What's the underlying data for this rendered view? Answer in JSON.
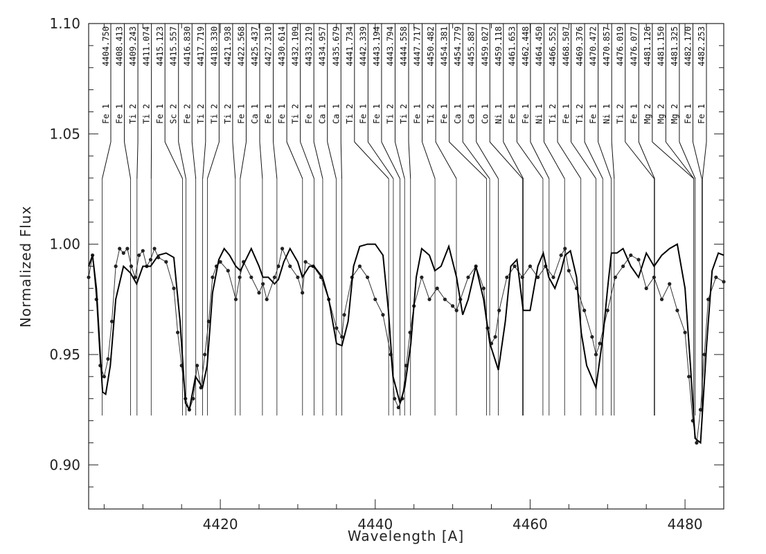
{
  "chart_data": {
    "type": "line",
    "xlabel": "Wavelength [A]",
    "ylabel": "Normalized Flux",
    "xlim": [
      4403,
      4485
    ],
    "ylim": [
      0.88,
      1.1
    ],
    "x_ticks": [
      4420,
      4440,
      4460,
      4480
    ],
    "y_ticks": [
      0.9,
      0.95,
      1.0,
      1.05,
      1.1
    ],
    "x_tick_labels": [
      "4420",
      "4440",
      "4460",
      "4480"
    ],
    "y_tick_labels": [
      "0.90",
      "0.95",
      "1.00",
      "1.05",
      "1.10"
    ],
    "grid": false,
    "line_identifications": [
      {
        "wavelength": 4404.75,
        "label": "4404.750",
        "species": "Fe 1"
      },
      {
        "wavelength": 4408.413,
        "label": "4408.413",
        "species": "Fe 1"
      },
      {
        "wavelength": 4409.243,
        "label": "4409.243",
        "species": "Ti 2"
      },
      {
        "wavelength": 4411.074,
        "label": "4411.074",
        "species": "Ti 2"
      },
      {
        "wavelength": 4415.123,
        "label": "4415.123",
        "species": "Fe 1"
      },
      {
        "wavelength": 4415.557,
        "label": "4415.557",
        "species": "Sc 2"
      },
      {
        "wavelength": 4416.83,
        "label": "4416.830",
        "species": "Fe 2"
      },
      {
        "wavelength": 4417.719,
        "label": "4417.719",
        "species": "Ti 2"
      },
      {
        "wavelength": 4418.33,
        "label": "4418.330",
        "species": "Ti 2"
      },
      {
        "wavelength": 4421.938,
        "label": "4421.938",
        "species": "Ti 2"
      },
      {
        "wavelength": 4422.568,
        "label": "4422.568",
        "species": "Fe 1"
      },
      {
        "wavelength": 4425.437,
        "label": "4425.437",
        "species": "Ca 1"
      },
      {
        "wavelength": 4427.31,
        "label": "4427.310",
        "species": "Fe 1"
      },
      {
        "wavelength": 4430.614,
        "label": "4430.614",
        "species": "Fe 1"
      },
      {
        "wavelength": 4432.109,
        "label": "4432.109",
        "species": "Ti 2"
      },
      {
        "wavelength": 4433.219,
        "label": "4433.219",
        "species": "Fe 1"
      },
      {
        "wavelength": 4434.957,
        "label": "4434.957",
        "species": "Ca 1"
      },
      {
        "wavelength": 4435.679,
        "label": "4435.679",
        "species": "Ca 1"
      },
      {
        "wavelength": 4441.734,
        "label": "4441.734",
        "species": "Ti 2"
      },
      {
        "wavelength": 4442.339,
        "label": "4442.339",
        "species": "Fe 1"
      },
      {
        "wavelength": 4443.194,
        "label": "4443.194",
        "species": "Fe 1"
      },
      {
        "wavelength": 4443.794,
        "label": "4443.794",
        "species": "Ti 2"
      },
      {
        "wavelength": 4444.558,
        "label": "4444.558",
        "species": "Ti 2"
      },
      {
        "wavelength": 4447.717,
        "label": "4447.717",
        "species": "Fe 1"
      },
      {
        "wavelength": 4450.482,
        "label": "4450.482",
        "species": "Ti 2"
      },
      {
        "wavelength": 4454.381,
        "label": "4454.381",
        "species": "Fe 1"
      },
      {
        "wavelength": 4454.779,
        "label": "4454.779",
        "species": "Ca 1"
      },
      {
        "wavelength": 4455.887,
        "label": "4455.887",
        "species": "Ca 1"
      },
      {
        "wavelength": 4459.027,
        "label": "4459.027",
        "species": "Co 1"
      },
      {
        "wavelength": 4459.118,
        "label": "4459.118",
        "species": "Ni 1"
      },
      {
        "wavelength": 4461.653,
        "label": "4461.653",
        "species": "Fe 1"
      },
      {
        "wavelength": 4462.448,
        "label": "4462.448",
        "species": "Fe 1"
      },
      {
        "wavelength": 4464.45,
        "label": "4464.450",
        "species": "Ni 1"
      },
      {
        "wavelength": 4466.552,
        "label": "4466.552",
        "species": "Ti 2"
      },
      {
        "wavelength": 4468.507,
        "label": "4468.507",
        "species": "Fe 1"
      },
      {
        "wavelength": 4469.376,
        "label": "4469.376",
        "species": "Ti 2"
      },
      {
        "wavelength": 4470.472,
        "label": "4470.472",
        "species": "Fe 1"
      },
      {
        "wavelength": 4470.857,
        "label": "4470.857",
        "species": "Ni 1"
      },
      {
        "wavelength": 4476.019,
        "label": "4476.019",
        "species": "Ti 2"
      },
      {
        "wavelength": 4476.077,
        "label": "4476.077",
        "species": "Fe 1"
      },
      {
        "wavelength": 4481.126,
        "label": "4481.126",
        "species": "Mg 2"
      },
      {
        "wavelength": 4481.15,
        "label": "4481.150",
        "species": "Mg 2"
      },
      {
        "wavelength": 4481.325,
        "label": "4481.325",
        "species": "Mg 2"
      },
      {
        "wavelength": 4482.17,
        "label": "4482.170",
        "species": "Fe 1"
      },
      {
        "wavelength": 4482.253,
        "label": "4482.253",
        "species": "Fe 1"
      }
    ],
    "series": [
      {
        "style": "observed points with connecting line",
        "x": [
          4403.0,
          4403.5,
          4404.0,
          4404.5,
          4405.0,
          4405.5,
          4406.0,
          4406.5,
          4407.0,
          4407.5,
          4408.0,
          4408.5,
          4409.0,
          4409.5,
          4410.0,
          4410.5,
          4411.0,
          4411.5,
          4412.0,
          4413.0,
          4414.0,
          4414.5,
          4415.0,
          4415.5,
          4416.0,
          4416.5,
          4417.0,
          4417.5,
          4418.0,
          4418.5,
          4419.0,
          4419.5,
          4420.0,
          4421.0,
          4422.0,
          4422.5,
          4423.0,
          4424.0,
          4425.0,
          4425.5,
          4426.0,
          4427.0,
          4427.5,
          4428.0,
          4429.0,
          4430.0,
          4430.6,
          4431.0,
          4432.0,
          4433.0,
          4434.0,
          4435.0,
          4435.7,
          4436.0,
          4437.0,
          4438.0,
          4439.0,
          4440.0,
          4441.0,
          4442.0,
          4442.5,
          4443.0,
          4443.5,
          4444.0,
          4444.5,
          4445.0,
          4446.0,
          4447.0,
          4448.0,
          4449.0,
          4450.0,
          4450.5,
          4451.0,
          4452.0,
          4453.0,
          4454.0,
          4454.5,
          4455.0,
          4455.5,
          4456.0,
          4457.0,
          4458.0,
          4459.0,
          4460.0,
          4461.0,
          4462.0,
          4463.0,
          4464.0,
          4464.5,
          4465.0,
          4466.0,
          4467.0,
          4468.0,
          4468.5,
          4469.0,
          4470.0,
          4471.0,
          4472.0,
          4473.0,
          4474.0,
          4475.0,
          4476.0,
          4477.0,
          4478.0,
          4479.0,
          4480.0,
          4480.5,
          4481.0,
          4481.5,
          4482.0,
          4482.5,
          4483.0,
          4484.0,
          4485.0
        ],
        "y": [
          0.985,
          0.995,
          0.975,
          0.945,
          0.94,
          0.948,
          0.965,
          0.99,
          0.998,
          0.996,
          0.998,
          0.99,
          0.985,
          0.995,
          0.997,
          0.99,
          0.993,
          0.998,
          0.994,
          0.992,
          0.98,
          0.96,
          0.945,
          0.93,
          0.925,
          0.93,
          0.945,
          0.935,
          0.95,
          0.965,
          0.985,
          0.99,
          0.992,
          0.988,
          0.975,
          0.985,
          0.992,
          0.985,
          0.978,
          0.982,
          0.975,
          0.985,
          0.99,
          0.998,
          0.99,
          0.985,
          0.978,
          0.992,
          0.99,
          0.985,
          0.975,
          0.962,
          0.958,
          0.968,
          0.985,
          0.99,
          0.985,
          0.975,
          0.968,
          0.95,
          0.93,
          0.926,
          0.93,
          0.945,
          0.96,
          0.972,
          0.985,
          0.975,
          0.98,
          0.975,
          0.972,
          0.97,
          0.975,
          0.985,
          0.99,
          0.98,
          0.962,
          0.955,
          0.958,
          0.97,
          0.985,
          0.99,
          0.985,
          0.99,
          0.985,
          0.99,
          0.985,
          0.995,
          0.998,
          0.988,
          0.98,
          0.97,
          0.958,
          0.95,
          0.955,
          0.97,
          0.985,
          0.99,
          0.995,
          0.993,
          0.98,
          0.985,
          0.975,
          0.982,
          0.97,
          0.96,
          0.94,
          0.92,
          0.91,
          0.925,
          0.95,
          0.975,
          0.985,
          0.983
        ]
      },
      {
        "style": "model solid line",
        "x": [
          4403.0,
          4403.5,
          4404.0,
          4404.5,
          4404.8,
          4405.2,
          4405.8,
          4406.5,
          4407.5,
          4408.4,
          4409.2,
          4410.0,
          4411.0,
          4412.0,
          4413.0,
          4414.0,
          4414.8,
          4415.5,
          4416.0,
          4416.8,
          4417.7,
          4418.3,
          4419.0,
          4419.8,
          4420.5,
          4421.2,
          4422.0,
          4422.6,
          4423.3,
          4424.0,
          4425.0,
          4425.5,
          4426.2,
          4427.0,
          4427.5,
          4428.2,
          4429.0,
          4430.0,
          4430.6,
          4431.5,
          4432.1,
          4433.2,
          4434.0,
          4435.0,
          4435.7,
          4436.5,
          4437.2,
          4438.0,
          4439.0,
          4440.0,
          4441.0,
          4441.7,
          4442.3,
          4443.2,
          4443.8,
          4444.6,
          4445.3,
          4446.0,
          4447.0,
          4447.7,
          4448.5,
          4449.5,
          4450.5,
          4451.3,
          4452.0,
          4453.0,
          4454.0,
          4454.8,
          4455.9,
          4456.8,
          4457.5,
          4458.3,
          4459.1,
          4460.0,
          4461.0,
          4461.7,
          4462.4,
          4463.2,
          4464.0,
          4464.5,
          4465.2,
          4466.0,
          4466.6,
          4467.3,
          4468.5,
          4469.4,
          4470.0,
          4470.5,
          4471.2,
          4472.0,
          4473.0,
          4474.0,
          4475.0,
          4476.0,
          4477.0,
          4478.0,
          4479.0,
          4480.0,
          4480.7,
          4481.3,
          4482.0,
          4482.8,
          4483.5,
          4484.3,
          4485.0
        ],
        "y": [
          0.99,
          0.995,
          0.98,
          0.95,
          0.933,
          0.932,
          0.945,
          0.975,
          0.99,
          0.987,
          0.982,
          0.99,
          0.99,
          0.995,
          0.996,
          0.994,
          0.965,
          0.928,
          0.925,
          0.94,
          0.935,
          0.945,
          0.978,
          0.993,
          0.998,
          0.995,
          0.99,
          0.988,
          0.993,
          0.998,
          0.99,
          0.985,
          0.985,
          0.982,
          0.984,
          0.992,
          0.998,
          0.992,
          0.985,
          0.99,
          0.99,
          0.985,
          0.975,
          0.955,
          0.954,
          0.965,
          0.99,
          0.999,
          1.0,
          1.0,
          0.995,
          0.97,
          0.94,
          0.928,
          0.935,
          0.955,
          0.985,
          0.998,
          0.995,
          0.988,
          0.99,
          0.999,
          0.985,
          0.968,
          0.975,
          0.99,
          0.975,
          0.955,
          0.943,
          0.965,
          0.99,
          0.993,
          0.97,
          0.97,
          0.99,
          0.996,
          0.985,
          0.98,
          0.988,
          0.995,
          0.997,
          0.985,
          0.96,
          0.945,
          0.935,
          0.958,
          0.98,
          0.996,
          0.996,
          0.998,
          0.99,
          0.985,
          0.996,
          0.99,
          0.995,
          0.998,
          1.0,
          0.98,
          0.945,
          0.912,
          0.91,
          0.955,
          0.988,
          0.996,
          0.995
        ]
      }
    ]
  }
}
